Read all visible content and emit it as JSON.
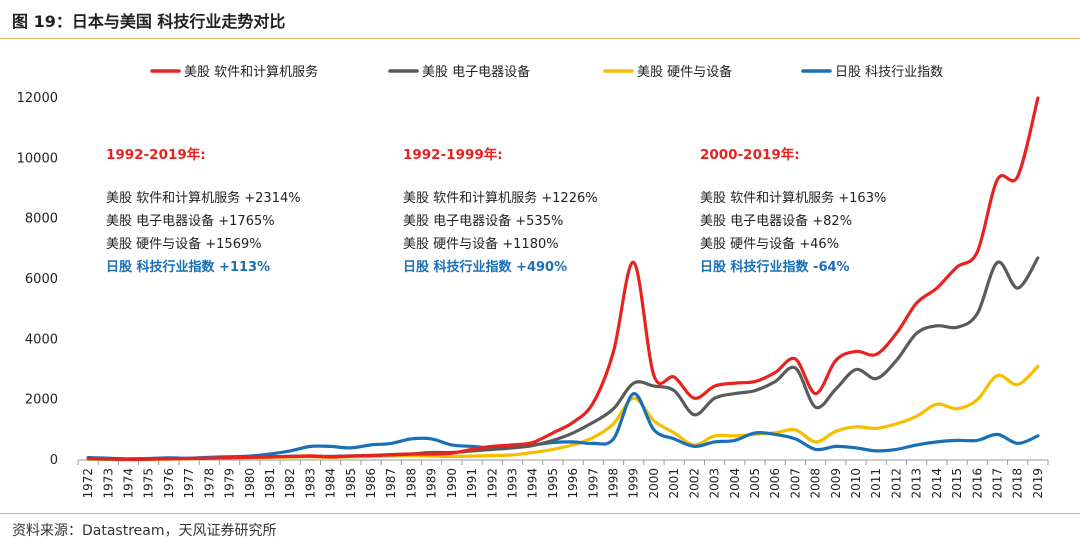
{
  "figure": {
    "title": "图 19：日本与美国 科技行业走势对比",
    "source": "资料来源：Datastream，天风证券研究所"
  },
  "chart_data": {
    "type": "line",
    "ylim": [
      0,
      12000
    ],
    "yticks": [
      0,
      2000,
      4000,
      6000,
      8000,
      10000,
      12000
    ],
    "grid": false,
    "legend_position": "top",
    "x": [
      "1972",
      "1973",
      "1974",
      "1975",
      "1976",
      "1977",
      "1978",
      "1979",
      "1980",
      "1981",
      "1982",
      "1983",
      "1984",
      "1985",
      "1986",
      "1987",
      "1988",
      "1989",
      "1990",
      "1991",
      "1992",
      "1993",
      "1994",
      "1995",
      "1996",
      "1997",
      "1998",
      "1999",
      "2000",
      "2001",
      "2002",
      "2003",
      "2004",
      "2005",
      "2006",
      "2007",
      "2008",
      "2009",
      "2010",
      "2011",
      "2012",
      "2013",
      "2014",
      "2015",
      "2016",
      "2017",
      "2018",
      "2019"
    ],
    "series": [
      {
        "name": "美股 软件和计算机服务",
        "color": "#e8221f",
        "values": [
          50,
          40,
          20,
          30,
          40,
          50,
          60,
          80,
          90,
          100,
          120,
          140,
          100,
          130,
          150,
          180,
          200,
          200,
          230,
          350,
          450,
          500,
          580,
          900,
          1250,
          1900,
          3600,
          6550,
          2800,
          2750,
          2050,
          2450,
          2550,
          2600,
          2900,
          3350,
          2200,
          3300,
          3600,
          3500,
          4200,
          5200,
          5700,
          6400,
          6900,
          9300,
          9400,
          12000
        ]
      },
      {
        "name": "美股 电子电器设备",
        "color": "#5a5a5a",
        "values": [
          40,
          30,
          20,
          30,
          40,
          50,
          60,
          80,
          100,
          110,
          120,
          130,
          120,
          140,
          150,
          170,
          200,
          250,
          250,
          300,
          350,
          400,
          480,
          650,
          900,
          1250,
          1700,
          2550,
          2450,
          2300,
          1500,
          2050,
          2200,
          2300,
          2600,
          3050,
          1750,
          2350,
          3000,
          2700,
          3300,
          4200,
          4450,
          4400,
          4850,
          6550,
          5700,
          6700
        ]
      },
      {
        "name": "美股 硬件与设备",
        "color": "#f7bd00",
        "values": [
          30,
          20,
          10,
          20,
          30,
          40,
          50,
          60,
          80,
          90,
          100,
          110,
          90,
          110,
          120,
          130,
          150,
          130,
          120,
          130,
          150,
          170,
          250,
          350,
          500,
          750,
          1200,
          2050,
          1300,
          900,
          500,
          800,
          800,
          850,
          900,
          1000,
          600,
          950,
          1100,
          1050,
          1200,
          1450,
          1850,
          1700,
          2000,
          2800,
          2500,
          3100
        ]
      },
      {
        "name": "日股 科技行业指数",
        "color": "#1b6fb5",
        "values": [
          80,
          60,
          40,
          50,
          70,
          60,
          90,
          110,
          130,
          200,
          300,
          450,
          450,
          400,
          500,
          550,
          700,
          700,
          500,
          450,
          400,
          450,
          500,
          580,
          600,
          550,
          700,
          2200,
          1000,
          700,
          450,
          600,
          650,
          900,
          850,
          700,
          350,
          450,
          400,
          300,
          350,
          500,
          600,
          650,
          650,
          850,
          550,
          800
        ]
      }
    ]
  },
  "annotations": [
    {
      "heading": "1992-2019年:",
      "lines": [
        "美股 软件和计算机服务  +2314%",
        "美股 电子电器设备  +1765%",
        "美股 硬件与设备  +1569%"
      ],
      "japan_line": "日股 科技行业指数  +113%"
    },
    {
      "heading": "1992-1999年:",
      "lines": [
        "美股 软件和计算机服务  +1226%",
        "美股 电子电器设备  +535%",
        "美股 硬件与设备  +1180%"
      ],
      "japan_line": "日股 科技行业指数  +490%"
    },
    {
      "heading": "2000-2019年:",
      "lines": [
        "美股 软件和计算机服务  +163%",
        "美股 电子电器设备  +82%",
        "美股 硬件与设备  +46%"
      ],
      "japan_line": "日股 科技行业指数  -64%"
    }
  ]
}
